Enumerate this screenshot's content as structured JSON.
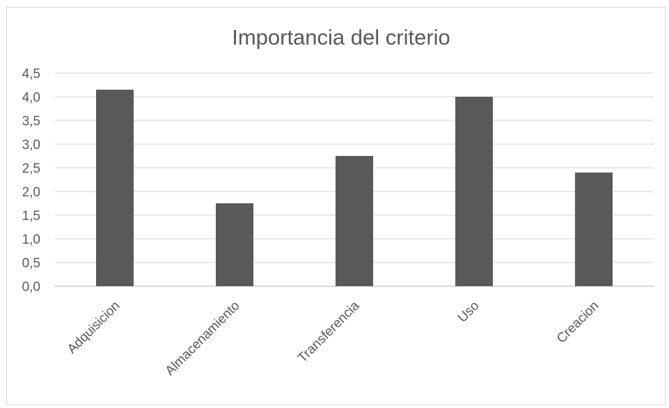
{
  "chart_data": {
    "type": "bar",
    "title": "Importancia del criterio",
    "xlabel": "",
    "ylabel": "",
    "categories": [
      "Adquisicion",
      "Almacenamiento",
      "Transferencia",
      "Uso",
      "Creacion"
    ],
    "values": [
      4.15,
      1.75,
      2.75,
      4.0,
      2.4
    ],
    "ylim": [
      0,
      4.5
    ],
    "yticks": [
      "0,0",
      "0,5",
      "1,0",
      "1,5",
      "2,0",
      "2,5",
      "3,0",
      "3,5",
      "4,0",
      "4,5"
    ],
    "ytick_values": [
      0,
      0.5,
      1,
      1.5,
      2,
      2.5,
      3,
      3.5,
      4,
      4.5
    ],
    "grid": true,
    "legend": "none",
    "colors": {
      "bar": "#595959",
      "text": "#595959",
      "grid": "#d9d9d9",
      "frame": "#d9d9d9"
    }
  }
}
